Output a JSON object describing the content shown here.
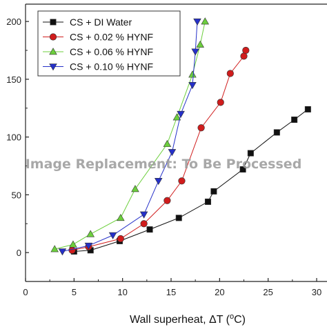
{
  "chart_data": {
    "type": "scatter",
    "title": "",
    "xlabel_prefix": "Wall superheat, ΔT (",
    "xlabel_sup": "o",
    "xlabel_suffix": "C)",
    "ylabel": "",
    "xlim": [
      0,
      30
    ],
    "ylim": [
      -25,
      215
    ],
    "x_ticks": [
      {
        "value": 0,
        "label": "0"
      },
      {
        "value": 5,
        "label": "5"
      },
      {
        "value": 10,
        "label": "10"
      },
      {
        "value": 15,
        "label": "15"
      },
      {
        "value": 20,
        "label": "20"
      },
      {
        "value": 25,
        "label": "25"
      },
      {
        "value": 30,
        "label": "30"
      }
    ],
    "y_ticks": [
      {
        "value": 0,
        "label": "0"
      },
      {
        "value": 50,
        "label": "50"
      },
      {
        "value": 100,
        "label": "100"
      },
      {
        "value": 150,
        "label": "150"
      },
      {
        "value": 200,
        "label": "200"
      }
    ],
    "grid": false,
    "legend_position": "top-left",
    "series": [
      {
        "name": "CS + DI Water",
        "color": "#111111",
        "marker": "square",
        "points": [
          [
            5.0,
            1
          ],
          [
            6.7,
            2
          ],
          [
            9.7,
            10
          ],
          [
            12.8,
            20
          ],
          [
            15.8,
            30
          ],
          [
            18.8,
            44
          ],
          [
            19.4,
            53
          ],
          [
            22.4,
            72
          ],
          [
            23.2,
            86
          ],
          [
            25.9,
            104
          ],
          [
            27.7,
            115
          ],
          [
            29.1,
            124
          ]
        ]
      },
      {
        "name": "CS + 0.02 % HYNF",
        "color": "#d01c1c",
        "marker": "circle",
        "points": [
          [
            4.8,
            2
          ],
          [
            6.5,
            5
          ],
          [
            9.8,
            12
          ],
          [
            12.2,
            25
          ],
          [
            14.6,
            45
          ],
          [
            16.1,
            62
          ],
          [
            18.1,
            108
          ],
          [
            20.1,
            130
          ],
          [
            21.1,
            155
          ],
          [
            22.5,
            170
          ],
          [
            22.7,
            175
          ]
        ]
      },
      {
        "name": "CS + 0.06 % HYNF",
        "color": "#6ccf3c",
        "marker": "triangle-up",
        "points": [
          [
            3.0,
            3
          ],
          [
            4.9,
            7
          ],
          [
            6.7,
            16
          ],
          [
            9.8,
            30
          ],
          [
            11.3,
            55
          ],
          [
            14.6,
            94
          ],
          [
            15.6,
            117
          ],
          [
            17.2,
            154
          ],
          [
            18.0,
            180
          ],
          [
            18.5,
            200
          ]
        ]
      },
      {
        "name": "CS + 0.10 % HYNF",
        "color": "#2530c9",
        "marker": "triangle-down",
        "points": [
          [
            3.8,
            1
          ],
          [
            6.5,
            6
          ],
          [
            9.0,
            15
          ],
          [
            12.2,
            33
          ],
          [
            13.7,
            62
          ],
          [
            15.1,
            87
          ],
          [
            16.0,
            120
          ],
          [
            17.2,
            145
          ],
          [
            17.5,
            174
          ],
          [
            17.7,
            200
          ]
        ]
      }
    ]
  },
  "watermark_text": "Image Replacement: To Be Processed"
}
